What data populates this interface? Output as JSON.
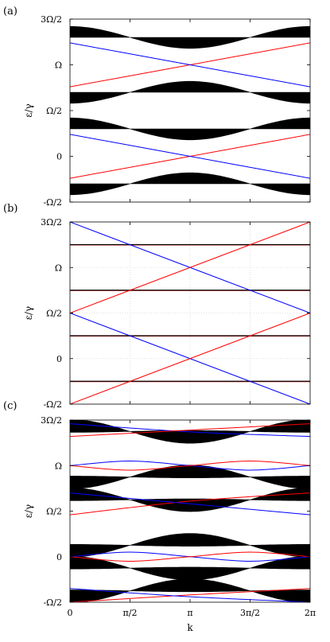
{
  "figure": {
    "xlabel": "k",
    "xticks": [
      "0",
      "π/2",
      "π",
      "3π/2",
      "2π"
    ],
    "ylabel": "ε/γ",
    "yticks": [
      "-Ω/2",
      "0",
      "Ω/2",
      "Ω",
      "3Ω/2"
    ],
    "colors": {
      "bands": "#000000",
      "red_edge": "#ff0000",
      "blue_edge": "#0000ff",
      "frame": "#000000",
      "grid": "#d8d8d8"
    }
  },
  "chart_data": [
    {
      "panel_label": "(a)",
      "type": "line",
      "xlabel": "k",
      "ylabel": "ε/γ",
      "x_domain": [
        0,
        6.2832
      ],
      "y_unit": "Ω",
      "ylim": [
        -0.5,
        1.5
      ],
      "grid": false,
      "bands": [
        {
          "center": 1.3,
          "amplitude": 0.06,
          "half_width": 0.06
        },
        {
          "center": 0.7,
          "amplitude": -0.06,
          "half_width": 0.06
        },
        {
          "center": 0.3,
          "amplitude": 0.06,
          "half_width": 0.06
        },
        {
          "center": -0.3,
          "amplitude": -0.06,
          "half_width": 0.06
        }
      ],
      "series": [
        {
          "color": "red",
          "points": [
            [
              0,
              0.76
            ],
            [
              3.1416,
              1.0
            ],
            [
              6.2832,
              1.24
            ]
          ]
        },
        {
          "color": "blue",
          "points": [
            [
              0,
              1.24
            ],
            [
              3.1416,
              1.0
            ],
            [
              6.2832,
              0.76
            ]
          ]
        },
        {
          "color": "red",
          "points": [
            [
              0,
              -0.24
            ],
            [
              3.1416,
              0.0
            ],
            [
              6.2832,
              0.24
            ]
          ]
        },
        {
          "color": "blue",
          "points": [
            [
              0,
              0.24
            ],
            [
              3.1416,
              0.0
            ],
            [
              6.2832,
              -0.24
            ]
          ]
        }
      ]
    },
    {
      "panel_label": "(b)",
      "type": "line",
      "xlabel": "k",
      "ylabel": "ε/γ",
      "x_domain": [
        0,
        6.2832
      ],
      "y_unit": "Ω",
      "ylim": [
        -0.5,
        1.5
      ],
      "grid": true,
      "flat_bands": [
        1.25,
        0.75,
        0.25,
        -0.25
      ],
      "series": [
        {
          "color": "blue",
          "points": [
            [
              0,
              1.5
            ],
            [
              6.2832,
              0.5
            ]
          ]
        },
        {
          "color": "red",
          "points": [
            [
              0,
              0.5
            ],
            [
              6.2832,
              1.5
            ]
          ]
        },
        {
          "color": "blue",
          "points": [
            [
              0,
              0.5
            ],
            [
              6.2832,
              -0.5
            ]
          ]
        },
        {
          "color": "red",
          "points": [
            [
              0,
              -0.5
            ],
            [
              6.2832,
              0.5
            ]
          ]
        }
      ]
    },
    {
      "panel_label": "(c)",
      "type": "line",
      "xlabel": "k",
      "ylabel": "ε/γ",
      "x_domain": [
        0,
        6.2832
      ],
      "y_unit": "Ω",
      "ylim": [
        -0.5,
        1.5
      ],
      "grid": false,
      "bands": [
        {
          "center": 1.375,
          "amplitude": 0.06,
          "half_width": 0.07
        },
        {
          "center": 0.875,
          "amplitude": -0.06,
          "half_width": 0.07
        },
        {
          "center": 0.625,
          "amplitude": 0.06,
          "half_width": 0.07
        },
        {
          "center": 0.125,
          "amplitude": -0.06,
          "half_width": 0.07
        },
        {
          "center": -0.125,
          "amplitude": 0.06,
          "half_width": 0.07
        },
        {
          "center": -0.375,
          "amplitude": -0.06,
          "half_width": 0.07
        }
      ],
      "series": [
        {
          "color": "blue",
          "points": [
            [
              0,
              1.46
            ],
            [
              3.1416,
              1.37
            ],
            [
              6.2832,
              1.32
            ]
          ]
        },
        {
          "color": "red",
          "points": [
            [
              0,
              1.32
            ],
            [
              3.1416,
              1.39
            ],
            [
              6.2832,
              1.46
            ]
          ]
        },
        {
          "color": "blue",
          "points": [
            [
              0,
              1.0
            ],
            [
              1.5708,
              1.05
            ],
            [
              3.1416,
              1.0
            ],
            [
              4.7124,
              0.95
            ],
            [
              6.2832,
              1.0
            ]
          ]
        },
        {
          "color": "red",
          "points": [
            [
              0,
              1.0
            ],
            [
              1.5708,
              0.95
            ],
            [
              3.1416,
              1.0
            ],
            [
              4.7124,
              1.05
            ],
            [
              6.2832,
              1.0
            ]
          ]
        },
        {
          "color": "red",
          "points": [
            [
              0,
              0.46
            ],
            [
              3.1416,
              0.61
            ],
            [
              6.2832,
              0.7
            ]
          ]
        },
        {
          "color": "blue",
          "points": [
            [
              0,
              0.7
            ],
            [
              3.1416,
              0.58
            ],
            [
              6.2832,
              0.46
            ]
          ]
        },
        {
          "color": "blue",
          "points": [
            [
              0,
              0.0
            ],
            [
              1.5708,
              0.05
            ],
            [
              3.1416,
              0.0
            ],
            [
              4.7124,
              -0.05
            ],
            [
              6.2832,
              0.0
            ]
          ]
        },
        {
          "color": "red",
          "points": [
            [
              0,
              0.0
            ],
            [
              1.5708,
              -0.05
            ],
            [
              3.1416,
              0.0
            ],
            [
              4.7124,
              0.05
            ],
            [
              6.2832,
              0.0
            ]
          ]
        },
        {
          "color": "red",
          "points": [
            [
              0,
              -0.5
            ],
            [
              3.1416,
              -0.42
            ],
            [
              6.2832,
              -0.35
            ]
          ]
        },
        {
          "color": "blue",
          "points": [
            [
              0,
              -0.35
            ],
            [
              3.1416,
              -0.44
            ],
            [
              6.2832,
              -0.5
            ]
          ]
        }
      ]
    }
  ]
}
